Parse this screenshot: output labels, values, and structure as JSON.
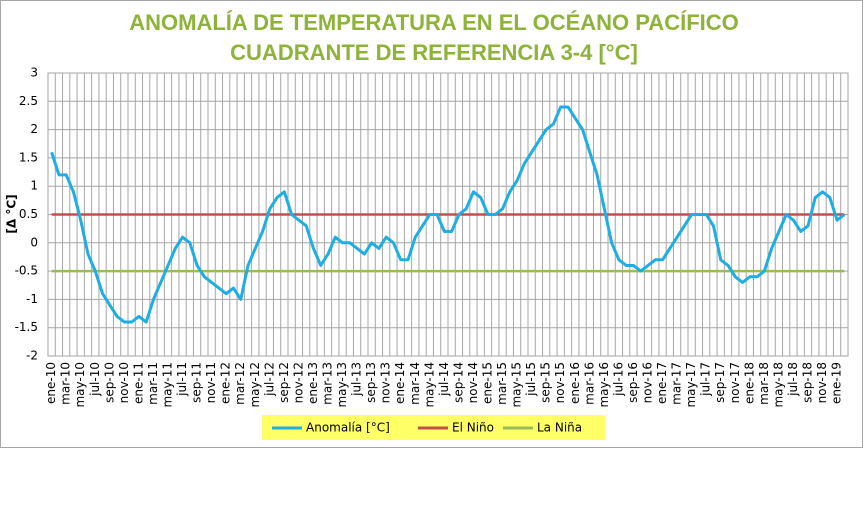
{
  "chart_data": {
    "type": "line",
    "title": "ANOMALÍA DE TEMPERATURA EN EL OCÉANO PACÍFICO",
    "subtitle": "CUADRANTE DE REFERENCIA 3-4 [°C]",
    "y_label": "[Δ °C]",
    "categories": [
      "ene-10",
      null,
      "mar-10",
      null,
      "may-10",
      null,
      "jul-10",
      null,
      "sep-10",
      null,
      "nov-10",
      null,
      "ene-11",
      null,
      "mar-11",
      null,
      "may-11",
      null,
      "jul-11",
      null,
      "sep-11",
      null,
      "nov-11",
      null,
      "ene-12",
      null,
      "mar-12",
      null,
      "may-12",
      null,
      "jul-12",
      null,
      "sep-12",
      null,
      "nov-12",
      null,
      "ene-13",
      null,
      "mar-13",
      null,
      "may-13",
      null,
      "jul-13",
      null,
      "sep-13",
      null,
      "nov-13",
      null,
      "ene-14",
      null,
      "mar-14",
      null,
      "may-14",
      null,
      "jul-14",
      null,
      "sep-14",
      null,
      "nov-14",
      null,
      "ene-15",
      null,
      "mar-15",
      null,
      "may-15",
      null,
      "jul-15",
      null,
      "sep-15",
      null,
      "nov-15",
      null,
      "ene-16",
      null,
      "mar-16",
      null,
      "may-16",
      null,
      "jul-16",
      null,
      "sep-16",
      null,
      "nov-16",
      null,
      "ene-17",
      null,
      "mar-17",
      null,
      "may-17",
      null,
      "jul-17",
      null,
      "sep-17",
      null,
      "nov-17",
      null,
      "ene-18",
      null,
      "mar-18",
      null,
      "may-18",
      null,
      "jul-18",
      null,
      "sep-18",
      null,
      "nov-18",
      null,
      "ene-19",
      null
    ],
    "series": [
      {
        "name": "Anomalía [°C]",
        "color": "#1eaee3",
        "width": 3,
        "values": [
          1.6,
          1.2,
          1.2,
          0.9,
          0.4,
          -0.2,
          -0.5,
          -0.9,
          -1.1,
          -1.3,
          -1.4,
          -1.4,
          -1.3,
          -1.4,
          -1.0,
          -0.7,
          -0.4,
          -0.1,
          0.1,
          0.0,
          -0.4,
          -0.6,
          -0.7,
          -0.8,
          -0.9,
          -0.8,
          -1.0,
          -0.4,
          -0.1,
          0.2,
          0.6,
          0.8,
          0.9,
          0.5,
          0.4,
          0.3,
          -0.1,
          -0.4,
          -0.2,
          0.1,
          0.0,
          0.0,
          -0.1,
          -0.2,
          0.0,
          -0.1,
          0.1,
          0.0,
          -0.3,
          -0.3,
          0.1,
          0.3,
          0.5,
          0.5,
          0.2,
          0.2,
          0.5,
          0.6,
          0.9,
          0.8,
          0.5,
          0.5,
          0.6,
          0.9,
          1.1,
          1.4,
          1.6,
          1.8,
          2.0,
          2.1,
          2.4,
          2.4,
          2.2,
          2.0,
          1.6,
          1.2,
          0.6,
          0.0,
          -0.3,
          -0.4,
          -0.4,
          -0.5,
          -0.4,
          -0.3,
          -0.3,
          -0.1,
          0.1,
          0.3,
          0.5,
          0.5,
          0.5,
          0.3,
          -0.3,
          -0.4,
          -0.6,
          -0.7,
          -0.6,
          -0.6,
          -0.5,
          -0.1,
          0.2,
          0.5,
          0.4,
          0.2,
          0.3,
          0.8,
          0.9,
          0.8,
          0.4,
          0.5
        ]
      },
      {
        "name": "El Niño",
        "color": "#c0504d",
        "width": 2.5,
        "values": [
          0.5,
          0.5,
          0.5,
          0.5,
          0.5,
          0.5,
          0.5,
          0.5,
          0.5,
          0.5,
          0.5,
          0.5,
          0.5,
          0.5,
          0.5,
          0.5,
          0.5,
          0.5,
          0.5,
          0.5,
          0.5,
          0.5,
          0.5,
          0.5,
          0.5,
          0.5,
          0.5,
          0.5,
          0.5,
          0.5,
          0.5,
          0.5,
          0.5,
          0.5,
          0.5,
          0.5,
          0.5,
          0.5,
          0.5,
          0.5,
          0.5,
          0.5,
          0.5,
          0.5,
          0.5,
          0.5,
          0.5,
          0.5,
          0.5,
          0.5,
          0.5,
          0.5,
          0.5,
          0.5,
          0.5,
          0.5,
          0.5,
          0.5,
          0.5,
          0.5,
          0.5,
          0.5,
          0.5,
          0.5,
          0.5,
          0.5,
          0.5,
          0.5,
          0.5,
          0.5,
          0.5,
          0.5,
          0.5,
          0.5,
          0.5,
          0.5,
          0.5,
          0.5,
          0.5,
          0.5,
          0.5,
          0.5,
          0.5,
          0.5,
          0.5,
          0.5,
          0.5,
          0.5,
          0.5,
          0.5,
          0.5,
          0.5,
          0.5,
          0.5,
          0.5,
          0.5,
          0.5,
          0.5,
          0.5,
          0.5,
          0.5,
          0.5,
          0.5,
          0.5,
          0.5,
          0.5,
          0.5,
          0.5,
          0.5,
          0.5
        ]
      },
      {
        "name": "La Niña",
        "color": "#9bbb59",
        "width": 2.5,
        "values": [
          -0.5,
          -0.5,
          -0.5,
          -0.5,
          -0.5,
          -0.5,
          -0.5,
          -0.5,
          -0.5,
          -0.5,
          -0.5,
          -0.5,
          -0.5,
          -0.5,
          -0.5,
          -0.5,
          -0.5,
          -0.5,
          -0.5,
          -0.5,
          -0.5,
          -0.5,
          -0.5,
          -0.5,
          -0.5,
          -0.5,
          -0.5,
          -0.5,
          -0.5,
          -0.5,
          -0.5,
          -0.5,
          -0.5,
          -0.5,
          -0.5,
          -0.5,
          -0.5,
          -0.5,
          -0.5,
          -0.5,
          -0.5,
          -0.5,
          -0.5,
          -0.5,
          -0.5,
          -0.5,
          -0.5,
          -0.5,
          -0.5,
          -0.5,
          -0.5,
          -0.5,
          -0.5,
          -0.5,
          -0.5,
          -0.5,
          -0.5,
          -0.5,
          -0.5,
          -0.5,
          -0.5,
          -0.5,
          -0.5,
          -0.5,
          -0.5,
          -0.5,
          -0.5,
          -0.5,
          -0.5,
          -0.5,
          -0.5,
          -0.5,
          -0.5,
          -0.5,
          -0.5,
          -0.5,
          -0.5,
          -0.5,
          -0.5,
          -0.5,
          -0.5,
          -0.5,
          -0.5,
          -0.5,
          -0.5,
          -0.5,
          -0.5,
          -0.5,
          -0.5,
          -0.5,
          -0.5,
          -0.5,
          -0.5,
          -0.5,
          -0.5,
          -0.5,
          -0.5,
          -0.5,
          -0.5,
          -0.5,
          -0.5,
          -0.5,
          -0.5,
          -0.5,
          -0.5,
          -0.5,
          -0.5,
          -0.5,
          -0.5,
          -0.5
        ]
      }
    ],
    "ylim": [
      -2,
      3
    ],
    "yticks": [
      -2,
      -1.5,
      -1,
      -0.5,
      0,
      0.5,
      1,
      1.5,
      2,
      2.5,
      3
    ],
    "grid": true,
    "legend": "bottom"
  }
}
